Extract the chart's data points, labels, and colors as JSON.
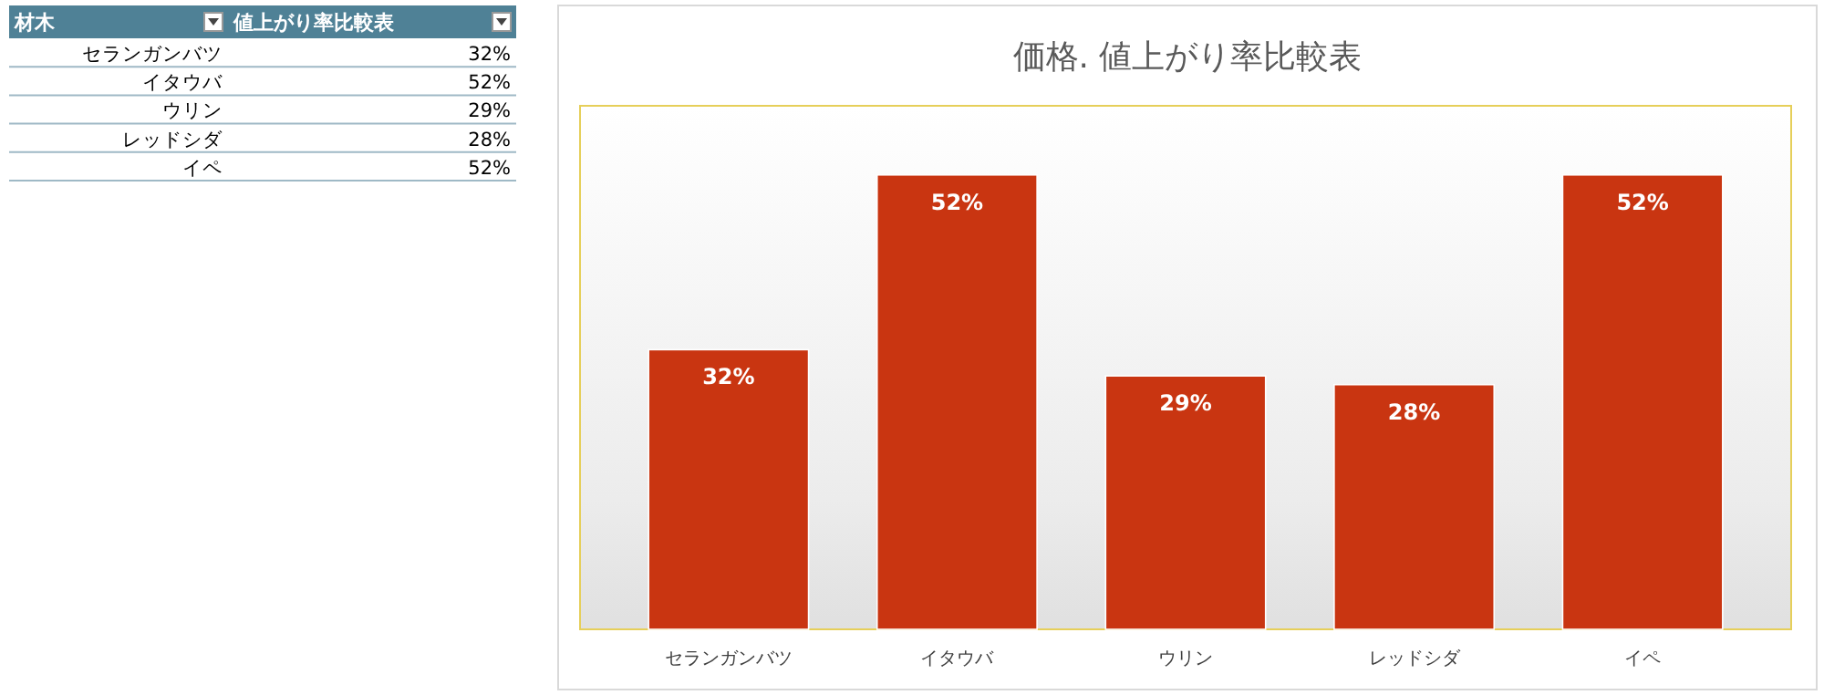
{
  "chart_data": {
    "type": "bar",
    "title": "価格. 値上がり率比較表",
    "categories": [
      "セランガンバツ",
      "イタウバ",
      "ウリン",
      "レッドシダ",
      "イペ"
    ],
    "values": [
      32,
      52,
      29,
      28,
      52
    ],
    "value_labels": [
      "32%",
      "52%",
      "29%",
      "28%",
      "52%"
    ],
    "color": "#c93511",
    "annotations": [
      "材木",
      "値上がり率比較表"
    ]
  }
}
